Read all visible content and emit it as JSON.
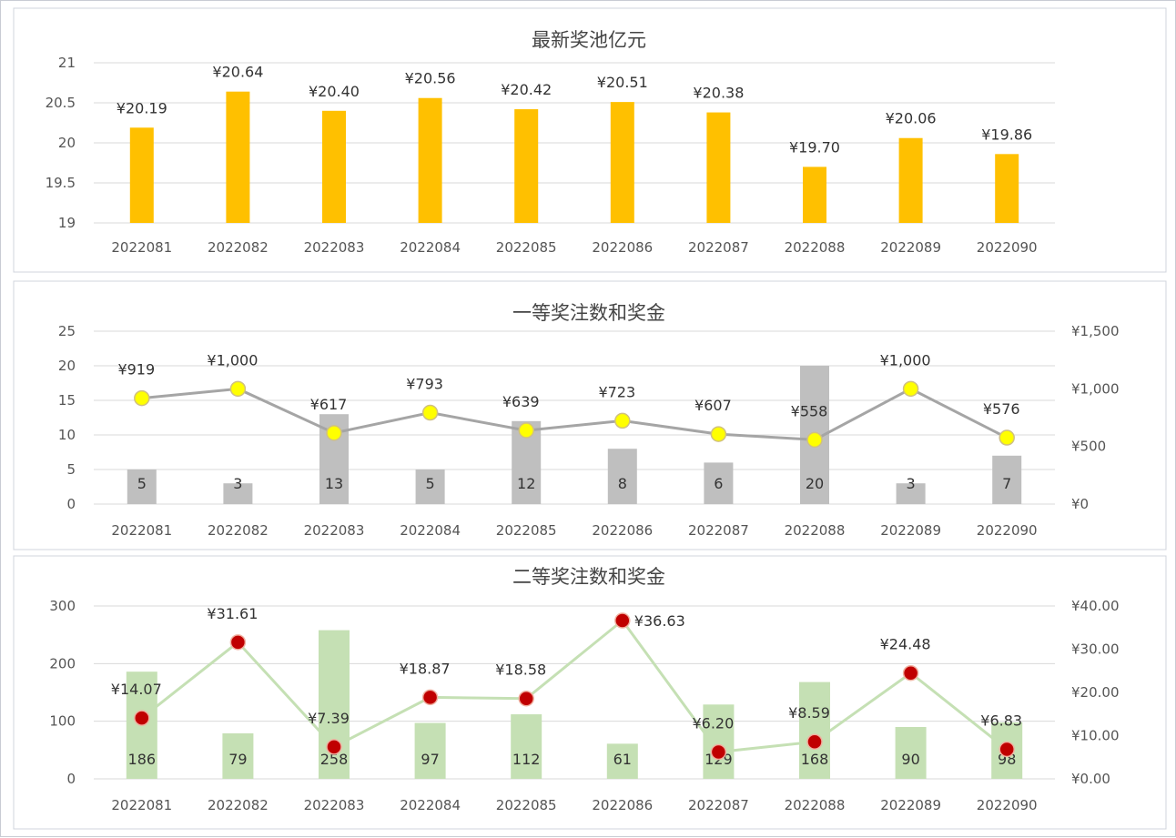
{
  "chart_data": [
    {
      "type": "bar",
      "title": "最新奖池亿元",
      "categories": [
        "2022081",
        "2022082",
        "2022083",
        "2022084",
        "2022085",
        "2022086",
        "2022087",
        "2022088",
        "2022089",
        "2022090"
      ],
      "values": [
        20.19,
        20.64,
        20.4,
        20.56,
        20.42,
        20.51,
        20.38,
        19.7,
        20.06,
        19.86
      ],
      "data_labels": [
        "¥20.19",
        "¥20.64",
        "¥20.40",
        "¥20.56",
        "¥20.42",
        "¥20.51",
        "¥20.38",
        "¥19.70",
        "¥20.06",
        "¥19.86"
      ],
      "ylim": [
        19,
        21
      ],
      "yticks": [
        "19",
        "19.5",
        "20",
        "20.5",
        "21"
      ],
      "grid": true,
      "color": "#ffc000"
    },
    {
      "type": "bar+line",
      "title": "一等奖注数和奖金",
      "categories": [
        "2022081",
        "2022082",
        "2022083",
        "2022084",
        "2022085",
        "2022086",
        "2022087",
        "2022088",
        "2022089",
        "2022090"
      ],
      "bars": {
        "values": [
          5,
          3,
          13,
          5,
          12,
          8,
          6,
          20,
          3,
          7
        ],
        "color": "#bfbfbf"
      },
      "line": {
        "values": [
          919,
          1000,
          617,
          793,
          639,
          723,
          607,
          558,
          1000,
          576
        ],
        "data_labels": [
          "¥919",
          "¥1,000",
          "¥617",
          "¥793",
          "¥639",
          "¥723",
          "¥607",
          "¥558",
          "¥1,000",
          "¥576"
        ],
        "color": "#a5a5a5",
        "marker_color": "#ffff00"
      },
      "ylim": [
        0,
        25
      ],
      "yticks": [
        "0",
        "5",
        "10",
        "15",
        "20",
        "25"
      ],
      "y2lim": [
        0,
        1500
      ],
      "y2ticks": [
        "¥0",
        "¥500",
        "¥1,000",
        "¥1,500"
      ],
      "grid": true
    },
    {
      "type": "bar+line",
      "title": "二等奖注数和奖金",
      "categories": [
        "2022081",
        "2022082",
        "2022083",
        "2022084",
        "2022085",
        "2022086",
        "2022087",
        "2022088",
        "2022089",
        "2022090"
      ],
      "bars": {
        "values": [
          186,
          79,
          258,
          97,
          112,
          61,
          129,
          168,
          90,
          98
        ],
        "color": "#c5e0b4"
      },
      "line": {
        "values": [
          14.07,
          31.61,
          7.39,
          18.87,
          18.58,
          36.63,
          6.2,
          8.59,
          24.48,
          6.83
        ],
        "data_labels": [
          "¥14.07",
          "¥31.61",
          "¥7.39",
          "¥18.87",
          "¥18.58",
          "¥36.63",
          "¥6.20",
          "¥8.59",
          "¥24.48",
          "¥6.83"
        ],
        "color": "#c5e0b4",
        "marker_color": "#c00000"
      },
      "ylim": [
        0,
        300
      ],
      "yticks": [
        "0",
        "100",
        "200",
        "300"
      ],
      "y2lim": [
        0,
        40
      ],
      "y2ticks": [
        "¥0.00",
        "¥10.00",
        "¥20.00",
        "¥30.00",
        "¥40.00"
      ],
      "grid": true
    }
  ]
}
